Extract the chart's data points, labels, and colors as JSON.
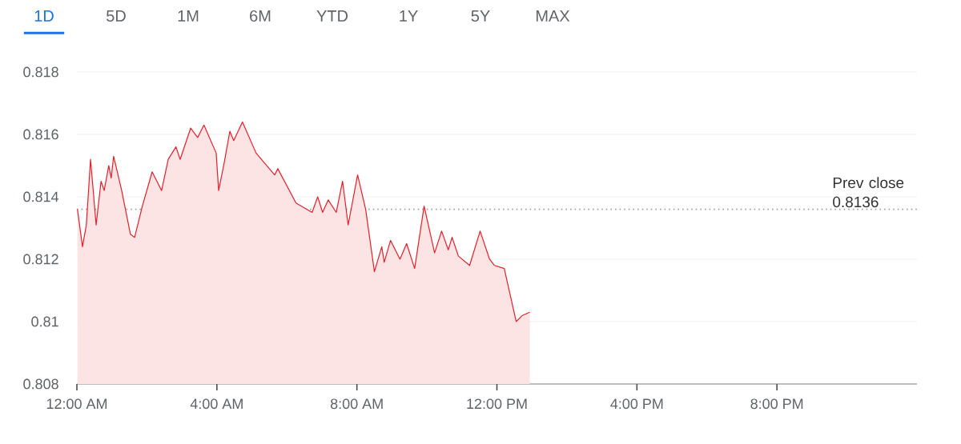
{
  "chart_data": {
    "type": "area",
    "annotations": [
      "1D",
      "5D",
      "1M",
      "6M",
      "YTD",
      "1Y",
      "5Y",
      "MAX"
    ],
    "x": [
      0.016,
      0.16,
      0.27,
      0.39,
      0.55,
      0.69,
      0.78,
      0.91,
      0.98,
      1.05,
      1.28,
      1.53,
      1.65,
      1.87,
      2.15,
      2.42,
      2.61,
      2.83,
      2.95,
      3.25,
      3.45,
      3.63,
      3.98,
      4.05,
      4.21,
      4.37,
      4.48,
      4.73,
      5.12,
      5.65,
      5.74,
      6.26,
      6.72,
      6.88,
      7.02,
      7.18,
      7.41,
      7.59,
      7.75,
      8.02,
      8.25,
      8.5,
      8.71,
      8.78,
      8.96,
      9.23,
      9.42,
      9.65,
      9.92,
      10.22,
      10.42,
      10.61,
      10.72,
      10.9,
      11.22,
      11.52,
      11.79,
      11.93,
      12.21,
      12.55,
      12.73,
      12.94
    ],
    "series": [
      {
        "color": "#e3202a",
        "values": [
          0.8136,
          0.8124,
          0.8131,
          0.8152,
          0.8131,
          0.8145,
          0.8142,
          0.815,
          0.8146,
          0.8153,
          0.8142,
          0.8128,
          0.8127,
          0.8137,
          0.8148,
          0.8142,
          0.8152,
          0.8156,
          0.8152,
          0.8162,
          0.8159,
          0.8163,
          0.8154,
          0.8142,
          0.8151,
          0.8161,
          0.8158,
          0.8164,
          0.8154,
          0.8147,
          0.8149,
          0.8138,
          0.8135,
          0.814,
          0.8135,
          0.8139,
          0.8135,
          0.8145,
          0.8131,
          0.8147,
          0.8136,
          0.8116,
          0.8124,
          0.8119,
          0.8126,
          0.812,
          0.8125,
          0.8117,
          0.8137,
          0.8122,
          0.8129,
          0.8123,
          0.8127,
          0.8121,
          0.8118,
          0.8129,
          0.812,
          0.8118,
          0.8117,
          0.81,
          0.8102,
          0.8103
        ]
      }
    ],
    "xlim": [
      0,
      24
    ],
    "xticks": [
      {
        "value": 0,
        "label": "12:00 AM"
      },
      {
        "value": 4,
        "label": "4:00 AM"
      },
      {
        "value": 8,
        "label": "8:00 AM"
      },
      {
        "value": 12,
        "label": "12:00 PM"
      },
      {
        "value": 16,
        "label": "4:00 PM"
      },
      {
        "value": 20,
        "label": "8:00 PM"
      }
    ],
    "ylim": [
      0.808,
      0.818
    ],
    "yticks": [
      0.808,
      0.81,
      0.812,
      0.814,
      0.816,
      0.818
    ],
    "grid": "y",
    "ref_lines": [
      {
        "axis": "y",
        "value": 0.8136,
        "label": "Prev close 0.8136",
        "color": "#9e9e9e",
        "line_style": "dotted"
      }
    ]
  }
}
